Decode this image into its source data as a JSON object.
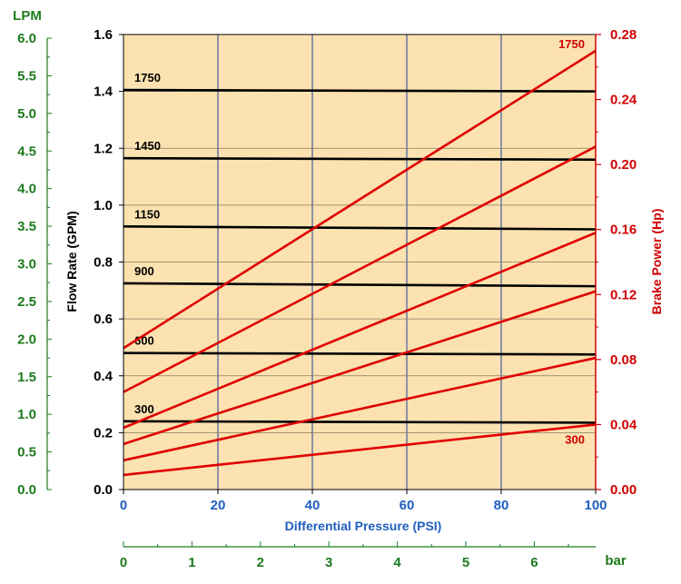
{
  "chart_data": {
    "type": "line",
    "x": [
      0,
      100
    ],
    "xlabel": "Differential Pressure (PSI)",
    "xlim": [
      0,
      100
    ],
    "xticks": [
      "0",
      "20",
      "40",
      "60",
      "80",
      "100"
    ],
    "ylabel": "Flow Rate (GPM)",
    "ylim": [
      0,
      1.6
    ],
    "yticks": [
      "0.0",
      "0.2",
      "0.4",
      "0.6",
      "0.8",
      "1.0",
      "1.2",
      "1.4",
      "1.6"
    ],
    "y2label": "Brake Power (Hp)",
    "y2lim": [
      0,
      0.28
    ],
    "y2ticks": [
      "0.00",
      "0.04",
      "0.08",
      "0.12",
      "0.16",
      "0.20",
      "0.24",
      "0.28"
    ],
    "lpm_axis": {
      "label": "LPM",
      "ticks": [
        "0.0",
        "0.5",
        "1.0",
        "1.5",
        "2.0",
        "2.5",
        "3.0",
        "3.5",
        "4.0",
        "4.5",
        "5.0",
        "5.5",
        "6.0"
      ]
    },
    "bar_axis": {
      "label": "bar",
      "ticks": [
        "0",
        "1",
        "2",
        "3",
        "4",
        "5",
        "6"
      ]
    },
    "flow_series": [
      {
        "name": "1750",
        "values": [
          1.405,
          1.4
        ]
      },
      {
        "name": "1450",
        "values": [
          1.165,
          1.16
        ]
      },
      {
        "name": "1150",
        "values": [
          0.925,
          0.915
        ]
      },
      {
        "name": "900",
        "values": [
          0.725,
          0.715
        ]
      },
      {
        "name": "600",
        "values": [
          0.48,
          0.475
        ]
      },
      {
        "name": "300",
        "values": [
          0.24,
          0.235
        ]
      }
    ],
    "power_series": [
      {
        "name": "1750",
        "values": [
          0.087,
          0.27
        ]
      },
      {
        "name": "1450",
        "values": [
          0.06,
          0.211
        ]
      },
      {
        "name": "1150",
        "values": [
          0.038,
          0.158
        ]
      },
      {
        "name": "900",
        "values": [
          0.028,
          0.122
        ]
      },
      {
        "name": "600",
        "values": [
          0.018,
          0.081
        ]
      },
      {
        "name": "300",
        "values": [
          0.009,
          0.04
        ]
      }
    ],
    "power_labels": [
      "1750",
      "300"
    ],
    "grid": true,
    "colors": {
      "plot_bg": "#fbe2b0",
      "grid": "#1f3fa0",
      "flow_line": "#000000",
      "power_line": "#e00000",
      "lpm_axis": "#1d7a1d",
      "x_axis_label": "#1f5fbf",
      "power_axis": "#d00000"
    }
  }
}
